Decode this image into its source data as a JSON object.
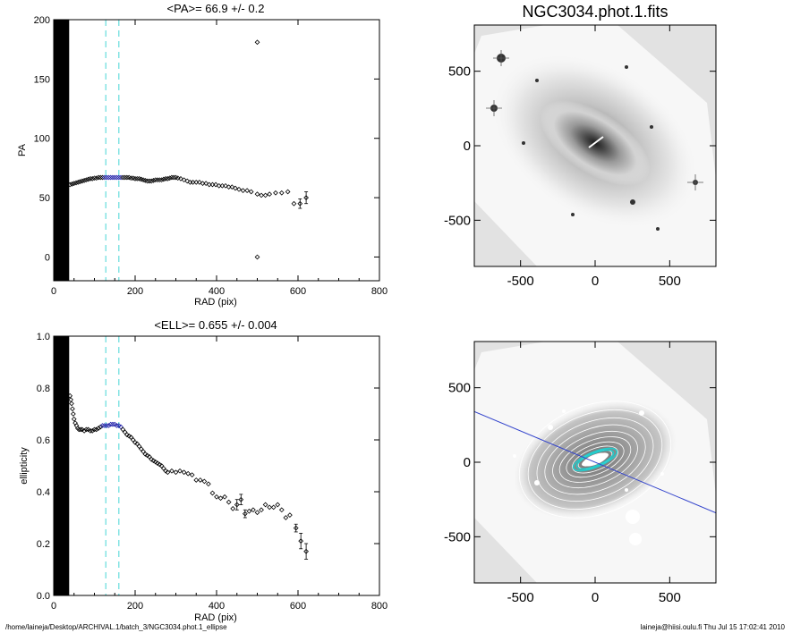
{
  "chart_data": [
    {
      "type": "scatter",
      "title": "<PA>=  66.9 +/-   0.2",
      "xlabel": "RAD (pix)",
      "ylabel": "PA",
      "xlim": [
        0,
        800
      ],
      "ylim": [
        -20,
        200
      ],
      "xticks": [
        "0",
        "200",
        "400",
        "600",
        "800"
      ],
      "yticks": [
        "0",
        "50",
        "100",
        "150",
        "200"
      ],
      "masked_region_x": [
        0,
        38
      ],
      "dashed_lines_x": [
        128,
        160
      ],
      "highlight_x_range": [
        125,
        165
      ],
      "highlight_color": "#2222aa",
      "dashed_color": "#66dddd",
      "series": [
        {
          "points": [
            [
              40,
              61
            ],
            [
              45,
              61.5
            ],
            [
              50,
              62
            ],
            [
              55,
              62.5
            ],
            [
              60,
              63
            ],
            [
              65,
              63.5
            ],
            [
              70,
              64
            ],
            [
              75,
              64.5
            ],
            [
              80,
              65
            ],
            [
              85,
              65.5
            ],
            [
              90,
              66
            ],
            [
              95,
              66
            ],
            [
              100,
              66.5
            ],
            [
              105,
              66.5
            ],
            [
              110,
              67
            ],
            [
              115,
              67
            ],
            [
              120,
              67
            ],
            [
              125,
              67
            ],
            [
              130,
              67
            ],
            [
              135,
              67
            ],
            [
              140,
              67
            ],
            [
              145,
              67
            ],
            [
              150,
              67
            ],
            [
              155,
              67
            ],
            [
              160,
              67
            ],
            [
              165,
              67
            ],
            [
              170,
              67
            ],
            [
              175,
              67
            ],
            [
              180,
              67
            ],
            [
              185,
              67
            ],
            [
              190,
              66.5
            ],
            [
              195,
              66.5
            ],
            [
              200,
              66
            ],
            [
              205,
              66
            ],
            [
              210,
              66
            ],
            [
              215,
              65.5
            ],
            [
              220,
              65
            ],
            [
              225,
              64.5
            ],
            [
              230,
              64
            ],
            [
              235,
              64
            ],
            [
              240,
              64
            ],
            [
              245,
              64.5
            ],
            [
              250,
              65
            ],
            [
              255,
              65
            ],
            [
              260,
              65
            ],
            [
              265,
              65
            ],
            [
              270,
              65.5
            ],
            [
              275,
              66
            ],
            [
              280,
              66
            ],
            [
              285,
              66.5
            ],
            [
              290,
              67
            ],
            [
              295,
              67
            ],
            [
              300,
              67
            ],
            [
              305,
              66.5
            ],
            [
              312,
              66
            ],
            [
              320,
              65
            ],
            [
              328,
              64
            ],
            [
              335,
              63
            ],
            [
              342,
              63
            ],
            [
              350,
              63
            ],
            [
              358,
              63
            ],
            [
              366,
              62
            ],
            [
              374,
              62
            ],
            [
              382,
              61
            ],
            [
              390,
              61
            ],
            [
              398,
              61
            ],
            [
              406,
              60
            ],
            [
              414,
              60
            ],
            [
              422,
              60
            ],
            [
              430,
              59
            ],
            [
              438,
              59
            ],
            [
              446,
              58
            ],
            [
              455,
              57
            ],
            [
              465,
              56
            ],
            [
              475,
              56
            ],
            [
              485,
              55
            ],
            [
              500,
              53
            ],
            [
              510,
              52
            ],
            [
              520,
              52
            ],
            [
              530,
              53
            ],
            [
              545,
              54
            ],
            [
              560,
              54
            ],
            [
              575,
              55
            ],
            [
              590,
              45
            ],
            [
              605,
              45
            ],
            [
              620,
              50
            ]
          ],
          "errors": [
            [
              605,
              4
            ],
            [
              620,
              5
            ]
          ]
        },
        {
          "points": [
            [
              500,
              181
            ],
            [
              500,
              0
            ]
          ]
        }
      ]
    },
    {
      "type": "scatter",
      "title": "<ELL>= 0.655 +/-  0.004",
      "xlabel": "RAD (pix)",
      "ylabel": "ellipticity",
      "xlim": [
        0,
        800
      ],
      "ylim": [
        0,
        1
      ],
      "xticks": [
        "0",
        "200",
        "400",
        "600",
        "800"
      ],
      "yticks": [
        "0.0",
        "0.2",
        "0.4",
        "0.6",
        "0.8",
        "1.0"
      ],
      "masked_region_x": [
        0,
        38
      ],
      "dashed_lines_x": [
        128,
        160
      ],
      "highlight_x_range": [
        120,
        165
      ],
      "highlight_color": "#2222aa",
      "dashed_color": "#66dddd",
      "series": [
        {
          "points": [
            [
              40,
              0.77
            ],
            [
              42,
              0.755
            ],
            [
              44,
              0.74
            ],
            [
              46,
              0.72
            ],
            [
              48,
              0.7
            ],
            [
              50,
              0.68
            ],
            [
              53,
              0.665
            ],
            [
              56,
              0.655
            ],
            [
              59,
              0.645
            ],
            [
              62,
              0.64
            ],
            [
              66,
              0.64
            ],
            [
              70,
              0.64
            ],
            [
              75,
              0.635
            ],
            [
              80,
              0.64
            ],
            [
              85,
              0.64
            ],
            [
              90,
              0.635
            ],
            [
              95,
              0.635
            ],
            [
              100,
              0.64
            ],
            [
              105,
              0.64
            ],
            [
              110,
              0.645
            ],
            [
              115,
              0.65
            ],
            [
              120,
              0.655
            ],
            [
              125,
              0.655
            ],
            [
              130,
              0.655
            ],
            [
              135,
              0.655
            ],
            [
              140,
              0.66
            ],
            [
              145,
              0.66
            ],
            [
              150,
              0.66
            ],
            [
              155,
              0.655
            ],
            [
              160,
              0.655
            ],
            [
              165,
              0.65
            ],
            [
              170,
              0.64
            ],
            [
              175,
              0.63
            ],
            [
              180,
              0.62
            ],
            [
              185,
              0.615
            ],
            [
              190,
              0.61
            ],
            [
              195,
              0.6
            ],
            [
              200,
              0.59
            ],
            [
              205,
              0.585
            ],
            [
              210,
              0.575
            ],
            [
              215,
              0.565
            ],
            [
              220,
              0.555
            ],
            [
              225,
              0.545
            ],
            [
              230,
              0.54
            ],
            [
              235,
              0.535
            ],
            [
              240,
              0.525
            ],
            [
              245,
              0.52
            ],
            [
              250,
              0.515
            ],
            [
              255,
              0.51
            ],
            [
              260,
              0.505
            ],
            [
              265,
              0.5
            ],
            [
              270,
              0.49
            ],
            [
              275,
              0.48
            ],
            [
              280,
              0.475
            ],
            [
              290,
              0.48
            ],
            [
              300,
              0.475
            ],
            [
              310,
              0.48
            ],
            [
              320,
              0.475
            ],
            [
              330,
              0.47
            ],
            [
              340,
              0.465
            ],
            [
              350,
              0.445
            ],
            [
              360,
              0.445
            ],
            [
              370,
              0.44
            ],
            [
              380,
              0.43
            ],
            [
              390,
              0.395
            ],
            [
              400,
              0.38
            ],
            [
              410,
              0.375
            ],
            [
              420,
              0.38
            ],
            [
              430,
              0.36
            ],
            [
              440,
              0.335
            ],
            [
              450,
              0.35
            ],
            [
              460,
              0.37
            ],
            [
              470,
              0.315
            ],
            [
              480,
              0.325
            ],
            [
              490,
              0.33
            ],
            [
              500,
              0.32
            ],
            [
              510,
              0.33
            ],
            [
              520,
              0.35
            ],
            [
              530,
              0.34
            ],
            [
              540,
              0.34
            ],
            [
              550,
              0.35
            ],
            [
              560,
              0.33
            ],
            [
              570,
              0.3
            ],
            [
              580,
              0.31
            ],
            [
              595,
              0.26
            ],
            [
              607,
              0.21
            ],
            [
              620,
              0.17
            ]
          ],
          "errors": [
            [
              450,
              0.02
            ],
            [
              460,
              0.02
            ],
            [
              470,
              0.015
            ],
            [
              595,
              0.015
            ],
            [
              607,
              0.03
            ],
            [
              620,
              0.03
            ]
          ]
        }
      ]
    },
    {
      "type": "heatmap",
      "title": "NGC3034.phot.1.fits",
      "xlim": [
        -810,
        810
      ],
      "ylim": [
        -810,
        810
      ],
      "xticks": [
        "-500",
        "0",
        "500"
      ],
      "yticks": [
        "-500",
        "0",
        "500"
      ]
    },
    {
      "type": "heatmap",
      "title": "",
      "xlim": [
        -810,
        810
      ],
      "ylim": [
        -810,
        810
      ],
      "xticks": [
        "-500",
        "0",
        "500"
      ],
      "yticks": [
        "-500",
        "0",
        "500"
      ],
      "major_axis_line": [
        [
          -810,
          340
        ],
        [
          810,
          -340
        ]
      ],
      "line_color": "#3344cc",
      "inner_ellipse_color": "#22cccc"
    }
  ],
  "footer": {
    "left": "/home/laineja/Desktop/ARCHIVAL.1/batch_3/NGC3034.phot.1_ellipse",
    "right": "laineja@hiisi.oulu.fi  Thu Jul 15 17:02:41 2010"
  }
}
